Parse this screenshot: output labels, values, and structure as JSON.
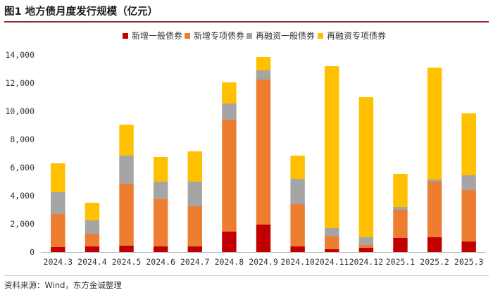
{
  "figure_title": "图1 地方债月度发行规模（亿元）",
  "source_note": "资料来源：Wind，东方金诚整理",
  "chart_data": {
    "type": "bar",
    "stacked": true,
    "title": "图1 地方债月度发行规模（亿元）",
    "xlabel": "",
    "ylabel": "",
    "ylim": [
      0,
      14000
    ],
    "yticks": [
      0,
      2000,
      4000,
      6000,
      8000,
      10000,
      12000,
      14000
    ],
    "ytick_labels": [
      "0",
      "2,000",
      "4,000",
      "6,000",
      "8,000",
      "10,000",
      "12,000",
      "14,000"
    ],
    "grid": false,
    "legend_position": "top",
    "categories": [
      "2024.3",
      "2024.4",
      "2024.5",
      "2024.6",
      "2024.7",
      "2024.8",
      "2024.9",
      "2024.10",
      "2024.11",
      "2024.12",
      "2025.1",
      "2025.2",
      "2025.3"
    ],
    "series": [
      {
        "name": "新增一般债券",
        "color": "#c00000",
        "values": [
          350,
          400,
          450,
          400,
          400,
          1450,
          1950,
          400,
          200,
          300,
          1000,
          1050,
          750
        ]
      },
      {
        "name": "新增专项债券",
        "color": "#ed7d31",
        "values": [
          2350,
          900,
          4400,
          3350,
          2850,
          7950,
          10300,
          3000,
          900,
          200,
          2000,
          3950,
          3650
        ]
      },
      {
        "name": "再融资一般债券",
        "color": "#a5a5a5",
        "values": [
          1550,
          950,
          2000,
          1250,
          1750,
          1150,
          650,
          1800,
          600,
          550,
          200,
          150,
          1050
        ]
      },
      {
        "name": "再融资专项债券",
        "color": "#ffc000",
        "values": [
          2050,
          1250,
          2200,
          1750,
          2150,
          1500,
          950,
          1650,
          11500,
          9950,
          2350,
          7950,
          4400
        ]
      }
    ]
  }
}
